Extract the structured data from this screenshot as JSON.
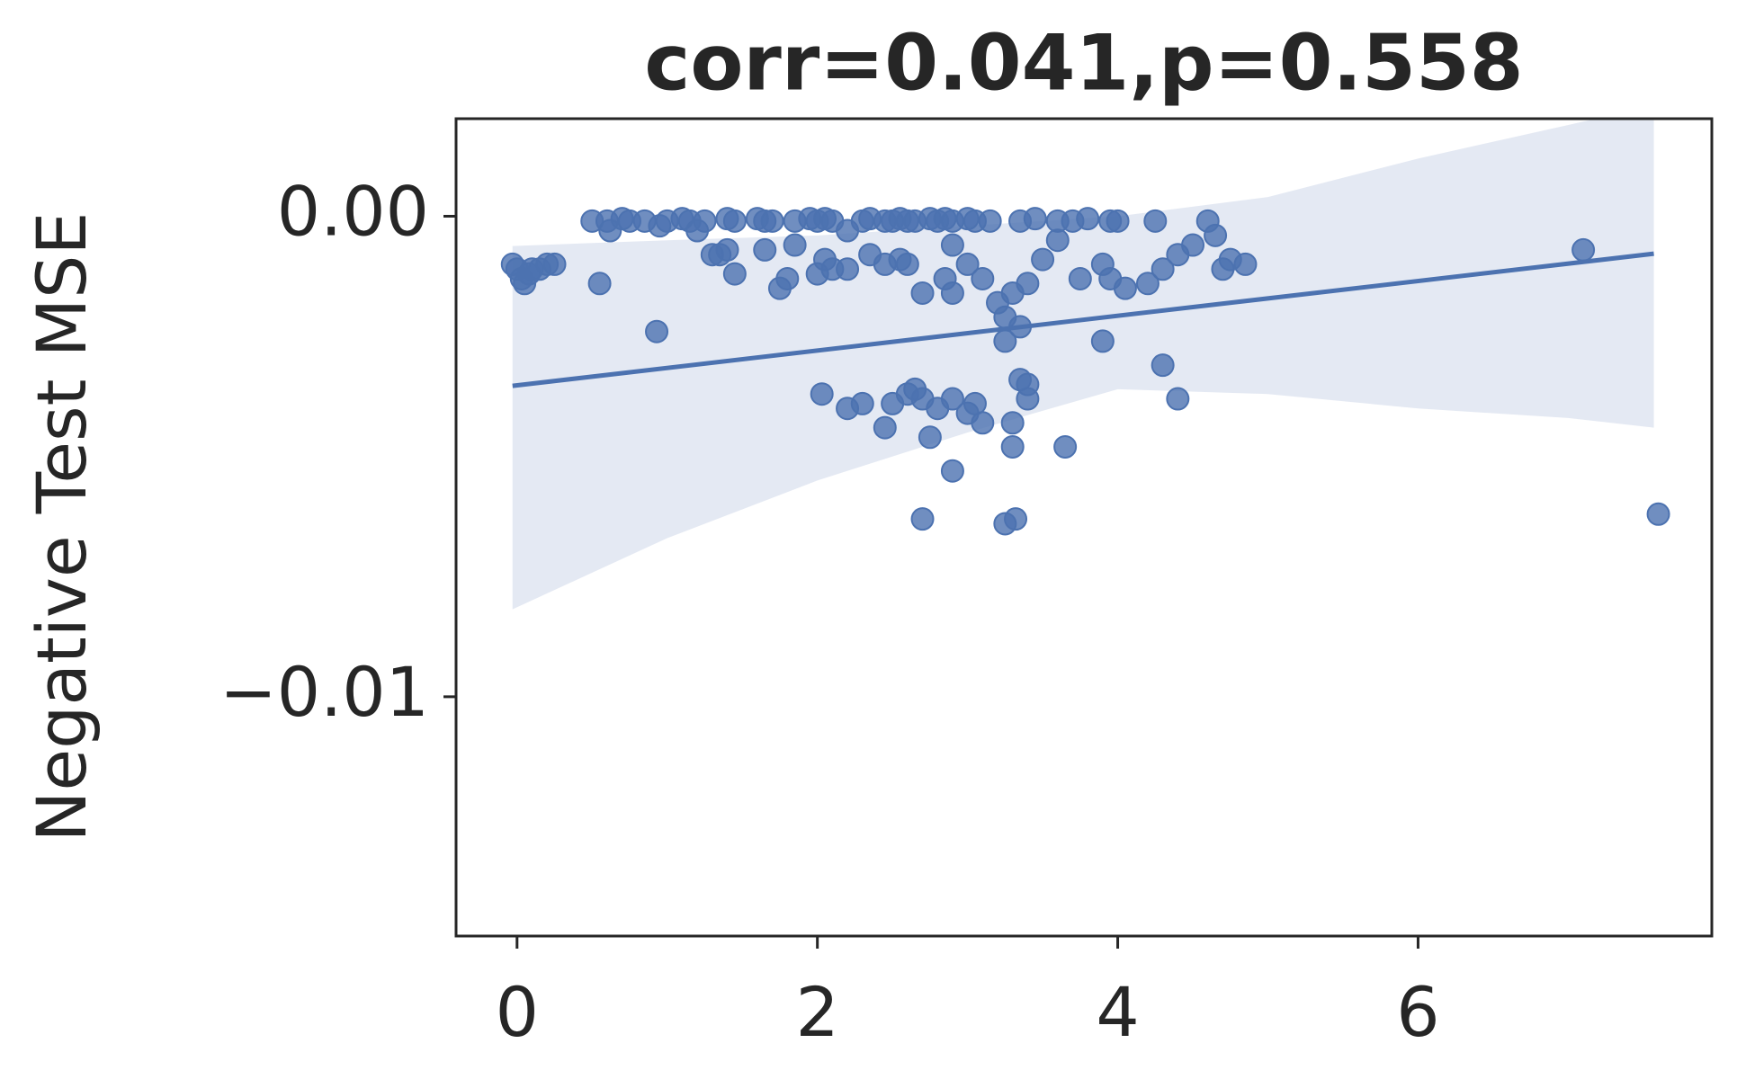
{
  "chart_data": {
    "type": "scatter",
    "title": "corr=0.041,p=0.558",
    "y_label": "Negative Test MSE",
    "color": "#4c72b0",
    "band_color": "#e1e7f2",
    "xlim": [
      -0.406,
      7.956
    ],
    "ylim": [
      -0.01498,
      0.00203
    ],
    "xticks": [
      0,
      2,
      4,
      6
    ],
    "yticks": [
      {
        "value": 0,
        "label": "0.00"
      },
      {
        "value": -0.01,
        "label": "−0.01"
      }
    ],
    "points": {
      "x": [
        -0.03,
        0,
        0.03,
        0.05,
        0.08,
        0.1,
        0.15,
        0.2,
        0.25,
        0.55,
        0.5,
        0.6,
        0.7,
        0.75,
        0.85,
        0.95,
        1.0,
        1.1,
        1.15,
        1.25,
        1.4,
        1.45,
        1.6,
        1.65,
        1.7,
        1.85,
        1.95,
        2.0,
        2.05,
        2.1,
        2.3,
        2.35,
        2.45,
        2.5,
        2.55,
        2.6,
        2.65,
        2.75,
        2.8,
        2.85,
        2.9,
        3.0,
        3.05,
        3.15,
        3.35,
        3.45,
        3.6,
        3.7,
        3.8,
        3.95,
        4.0,
        4.25,
        4.6,
        0.62,
        1.2,
        1.3,
        1.35,
        1.4,
        1.45,
        1.65,
        1.75,
        1.8,
        1.85,
        0.93,
        2.0,
        2.05,
        2.1,
        2.2,
        2.2,
        2.35,
        2.45,
        2.55,
        2.6,
        2.7,
        2.85,
        2.9,
        2.9,
        3.0,
        3.1,
        3.2,
        3.25,
        3.3,
        3.35,
        3.25,
        3.4,
        3.5,
        3.6,
        3.75,
        3.9,
        3.95,
        4.05,
        4.2,
        4.3,
        4.4,
        4.5,
        4.65,
        4.7,
        4.75,
        4.85,
        3.9,
        4.3,
        4.4,
        2.03,
        2.2,
        2.3,
        2.45,
        2.5,
        2.6,
        2.65,
        2.7,
        2.8,
        2.9,
        3.0,
        3.05,
        3.1,
        3.35,
        3.4,
        3.4,
        3.3,
        2.75,
        3.3,
        3.65,
        2.9,
        2.7,
        3.25,
        3.32,
        7.1,
        7.6
      ],
      "y": [
        -0.001,
        -0.0011,
        -0.0013,
        -0.0014,
        -0.0012,
        -0.0011,
        -0.0011,
        -0.001,
        -0.001,
        -0.0014,
        -0.0001,
        -0.0001,
        -5e-05,
        -0.0001,
        -0.0001,
        -0.0002,
        -0.0001,
        -5e-05,
        -0.0001,
        -0.0001,
        -5e-05,
        -0.0001,
        -5e-05,
        -0.0001,
        -0.0001,
        -0.0001,
        -5e-05,
        -0.0001,
        -5e-05,
        -0.0001,
        -0.0001,
        -5e-05,
        -0.0001,
        -0.0001,
        -5e-05,
        -0.0001,
        -0.0001,
        -5e-05,
        -0.0001,
        -5e-05,
        -0.0001,
        -5e-05,
        -0.0001,
        -0.0001,
        -0.0001,
        -5e-05,
        -0.0001,
        -0.0001,
        -5e-05,
        -0.0001,
        -0.0001,
        -0.0001,
        -0.0001,
        -0.0003,
        -0.0003,
        -0.0008,
        -0.0008,
        -0.0007,
        -0.0012,
        -0.0007,
        -0.0015,
        -0.0013,
        -0.0006,
        -0.0024,
        -0.0012,
        -0.0009,
        -0.0011,
        -0.0011,
        -0.0003,
        -0.0008,
        -0.001,
        -0.0009,
        -0.001,
        -0.0016,
        -0.0013,
        -0.0016,
        -0.0006,
        -0.001,
        -0.0013,
        -0.0018,
        -0.0021,
        -0.0016,
        -0.0023,
        -0.0026,
        -0.0014,
        -0.0009,
        -0.0005,
        -0.0013,
        -0.001,
        -0.0013,
        -0.0015,
        -0.0014,
        -0.0011,
        -0.0008,
        -0.0006,
        -0.0004,
        -0.0011,
        -0.0009,
        -0.001,
        -0.0026,
        -0.0031,
        -0.0038,
        -0.0037,
        -0.004,
        -0.0039,
        -0.0044,
        -0.0039,
        -0.0037,
        -0.0036,
        -0.0038,
        -0.004,
        -0.0038,
        -0.0041,
        -0.0039,
        -0.0043,
        -0.0034,
        -0.0035,
        -0.0038,
        -0.0043,
        -0.0046,
        -0.0048,
        -0.0048,
        -0.0053,
        -0.0063,
        -0.0064,
        -0.0063,
        -0.0007,
        -0.0062
      ]
    },
    "regression": {
      "x": [
        -0.03,
        7.57
      ],
      "y": [
        -0.00353,
        -0.00078
      ]
    },
    "band": {
      "x": [
        -0.03,
        1,
        2,
        3,
        4,
        5,
        6,
        7,
        7.57
      ],
      "upper": [
        -0.00062,
        -0.0005,
        -0.0004,
        -0.0002,
        0,
        0.0004,
        0.0012,
        0.0019,
        0.0023
      ],
      "lower": [
        -0.00818,
        -0.0067,
        -0.0055,
        -0.0045,
        -0.0036,
        -0.0037,
        -0.004,
        -0.0042,
        -0.0044
      ]
    }
  }
}
